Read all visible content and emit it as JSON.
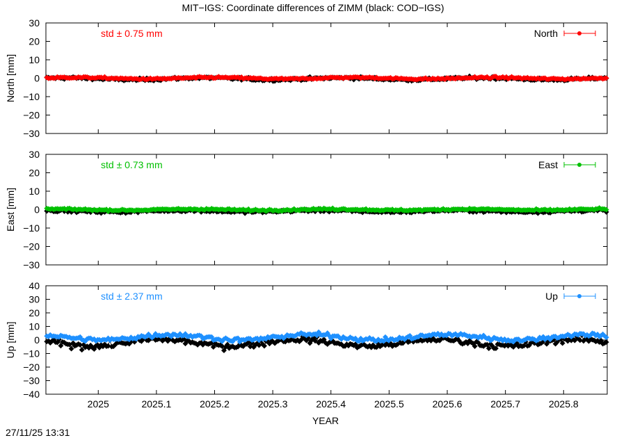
{
  "title": "MIT−IGS: Coordinate differences of ZIMM (black: COD−IGS)",
  "xlabel": "YEAR",
  "timestamp": "27/11/25 13:31",
  "chart_data": [
    {
      "type": "line",
      "component": "North",
      "ylabel": "North [mm]",
      "std_label": "std ± 0.75 mm",
      "color": "#ff0000",
      "ylim": [
        -30,
        30
      ],
      "yticks": [
        -30,
        -20,
        -10,
        0,
        10,
        20,
        30
      ],
      "series_mit": {
        "mean": 0.0,
        "amplitude": 0.4,
        "noise": 0.6
      },
      "series_cod": {
        "mean": -0.3,
        "amplitude": 0.5,
        "noise": 0.9
      }
    },
    {
      "type": "line",
      "component": "East",
      "ylabel": "East [mm]",
      "std_label": "std ± 0.73 mm",
      "color": "#00c000",
      "ylim": [
        -30,
        30
      ],
      "yticks": [
        -30,
        -20,
        -10,
        0,
        10,
        20,
        30
      ],
      "series_mit": {
        "mean": 0.0,
        "amplitude": 0.3,
        "noise": 0.6
      },
      "series_cod": {
        "mean": -0.8,
        "amplitude": 0.4,
        "noise": 0.9
      }
    },
    {
      "type": "line",
      "component": "Up",
      "ylabel": "Up [mm]",
      "std_label": "std ± 2.37 mm",
      "color": "#1e90ff",
      "ylim": [
        -40,
        40
      ],
      "yticks": [
        -40,
        -30,
        -20,
        -10,
        0,
        10,
        20,
        30,
        40
      ],
      "series_mit": {
        "mean": 2.0,
        "amplitude": 2.0,
        "noise": 2.0
      },
      "series_cod": {
        "mean": -2.0,
        "amplitude": 2.5,
        "noise": 2.8
      }
    }
  ],
  "x_axis": {
    "range": [
      2024.91,
      2025.875
    ],
    "ticks": [
      "2025",
      "2025.1",
      "2025.2",
      "2025.3",
      "2025.4",
      "2025.5",
      "2025.6",
      "2025.7",
      "2025.8"
    ],
    "tick_values": [
      2025.0,
      2025.1,
      2025.2,
      2025.3,
      2025.4,
      2025.5,
      2025.6,
      2025.7,
      2025.8
    ]
  }
}
